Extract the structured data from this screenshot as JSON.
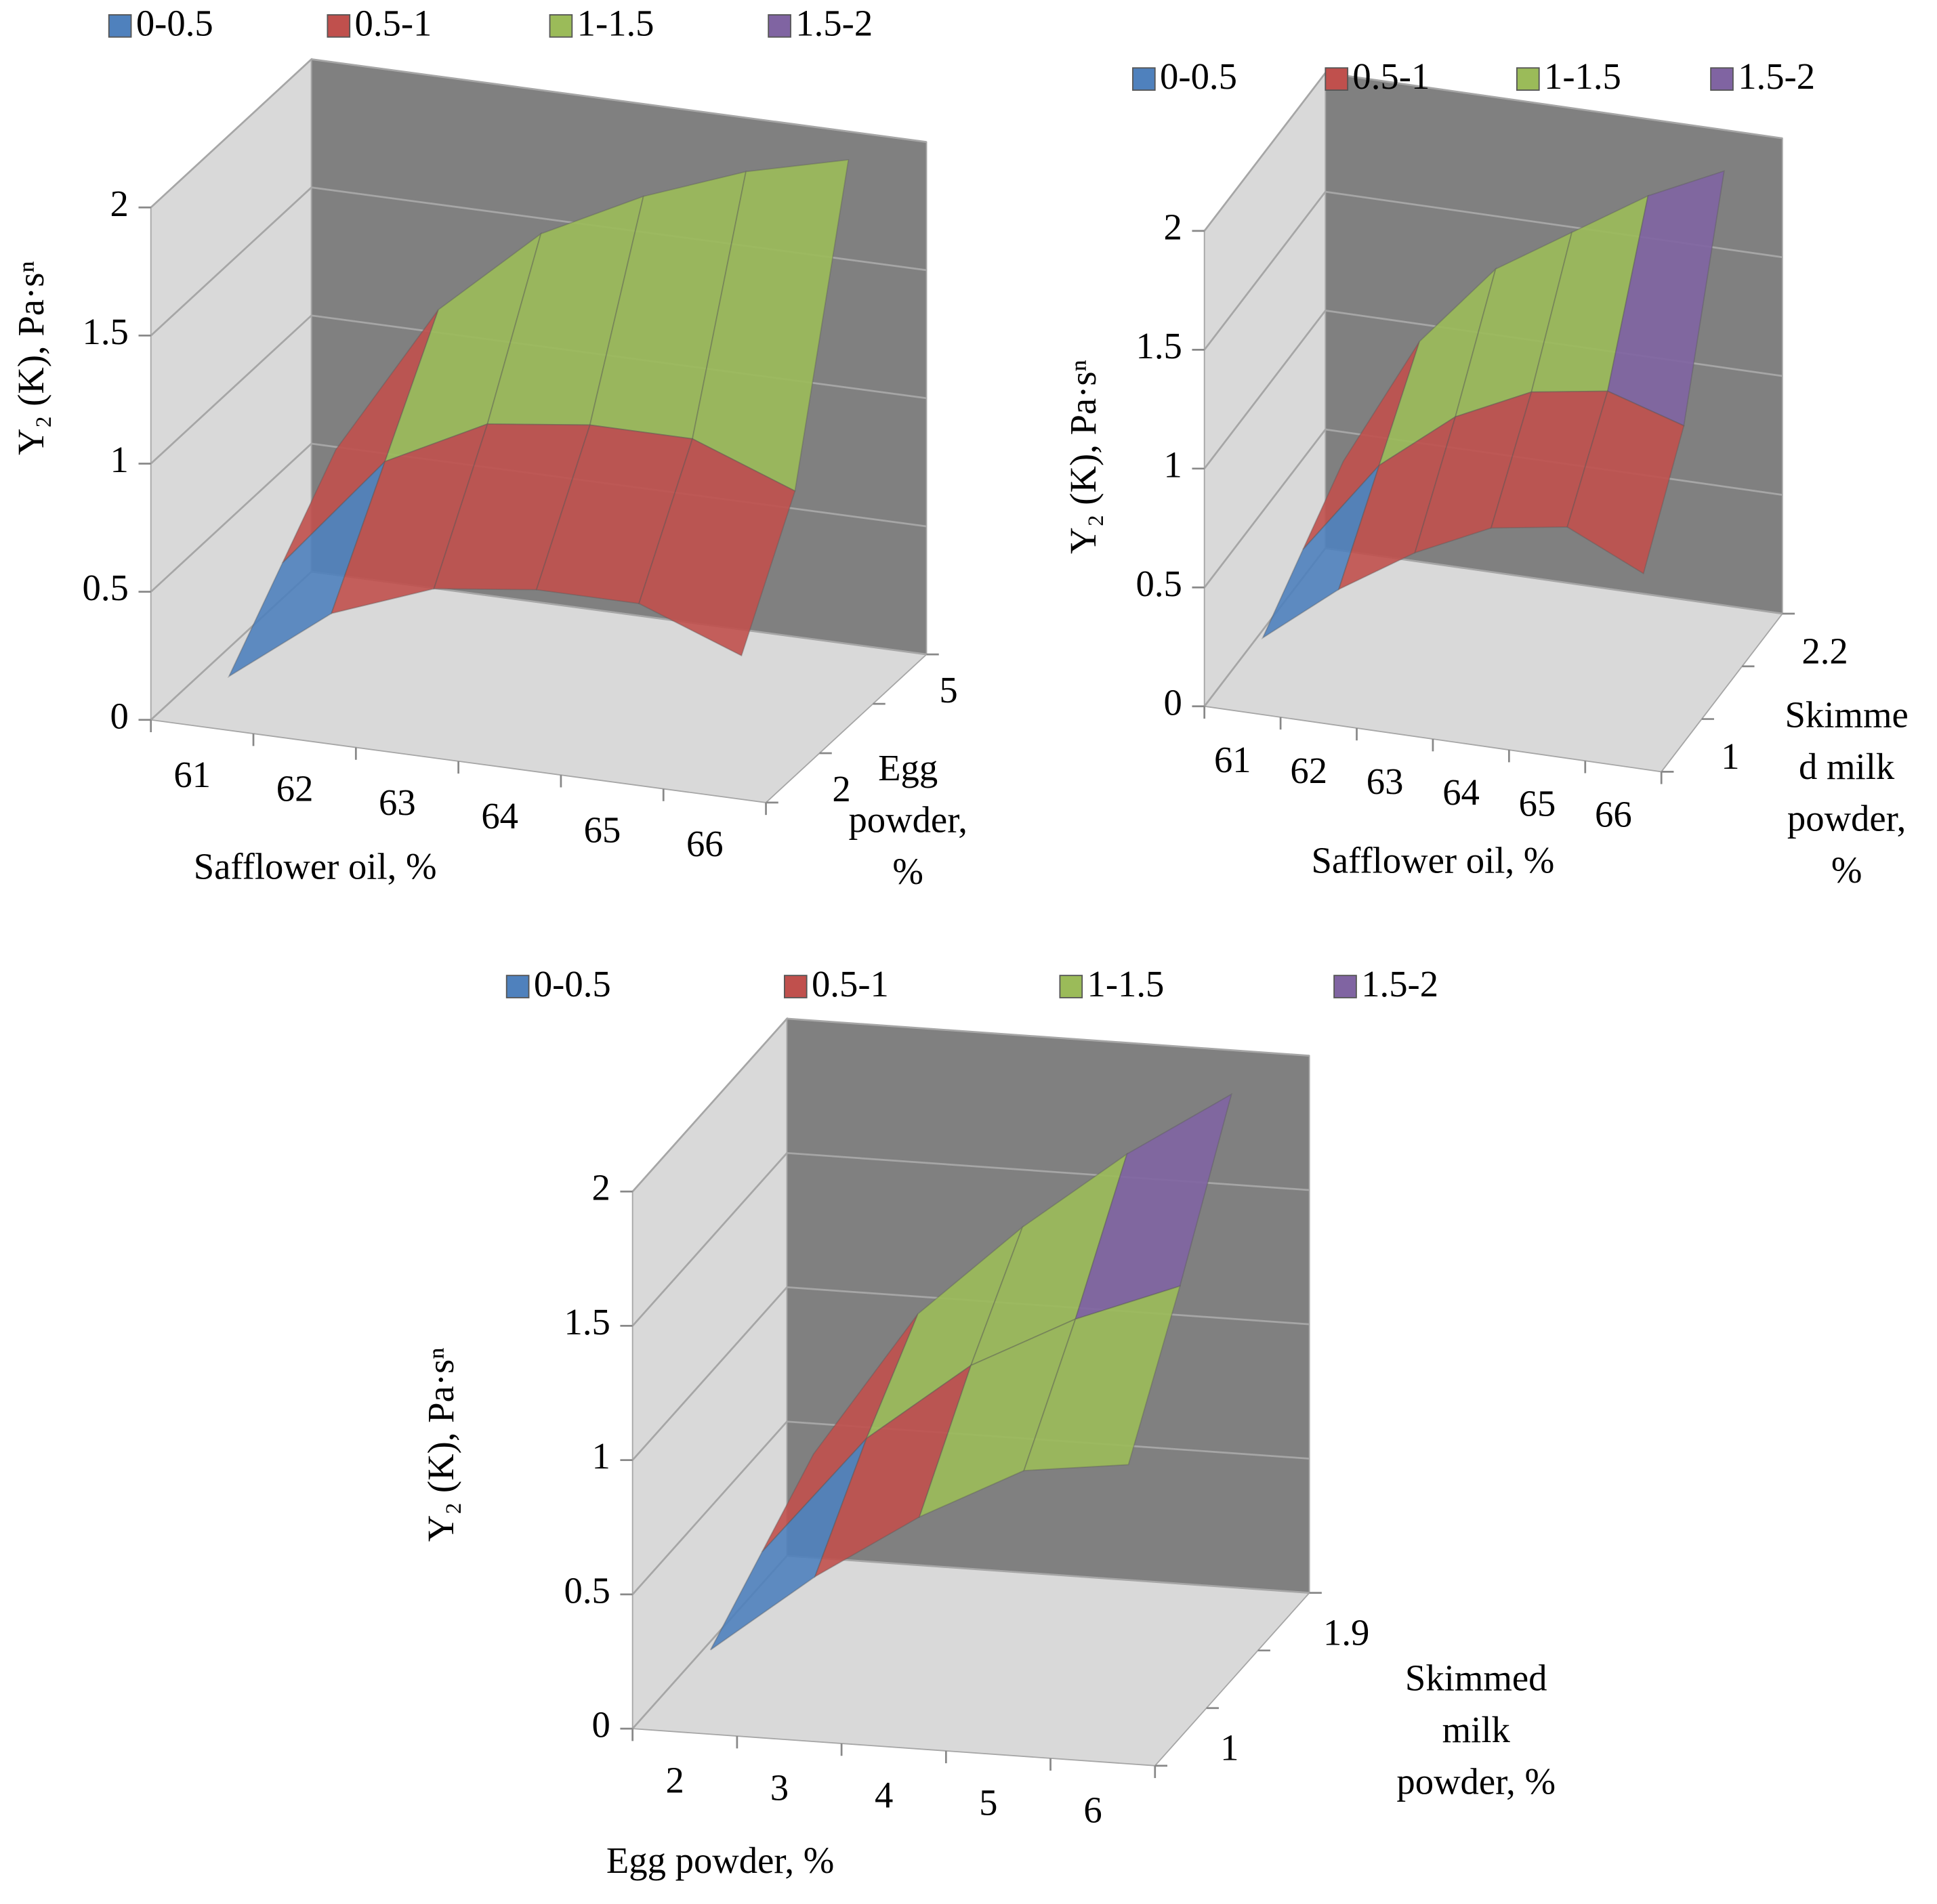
{
  "chart_data": [
    {
      "type": "surface",
      "y_label": "Y₂ (K), Pa·sⁿ",
      "x_label": "Safflower oil, %",
      "depth_label": [
        "Egg",
        "powder,",
        "%"
      ],
      "categories": [
        "61",
        "62",
        "63",
        "64",
        "65",
        "66"
      ],
      "depth_categories": [
        "2",
        null,
        "5"
      ],
      "values": [
        [
          0.1,
          0.4,
          0.55,
          0.6,
          0.6,
          0.45
        ],
        [
          0.35,
          0.8,
          1.0,
          1.05,
          1.05,
          0.9
        ],
        [
          0.6,
          1.2,
          1.55,
          1.75,
          1.9,
          2.0
        ]
      ],
      "ylim": [
        0,
        2
      ],
      "yticks": [
        0,
        0.5,
        1,
        1.5,
        2
      ],
      "grid": true,
      "legend": [
        {
          "name": "0-0.5",
          "color": "#4f81bd"
        },
        {
          "name": "0.5-1",
          "color": "#c0504d"
        },
        {
          "name": "1-1.5",
          "color": "#9bbb59"
        },
        {
          "name": "1.5-2",
          "color": "#8064a2"
        }
      ]
    },
    {
      "type": "surface",
      "y_label": "Y₂ (K), Pa·sⁿ",
      "x_label": "Safflower oil, %",
      "depth_label": [
        "Skimme",
        "d milk",
        "powder,",
        "%"
      ],
      "categories": [
        "61",
        "62",
        "63",
        "64",
        "65",
        "66"
      ],
      "depth_categories": [
        "1",
        null,
        "2.2"
      ],
      "values": [
        [
          0.2,
          0.45,
          0.65,
          0.8,
          0.85,
          0.7
        ],
        [
          0.35,
          0.75,
          1.0,
          1.15,
          1.2,
          1.1
        ],
        [
          0.5,
          1.05,
          1.4,
          1.6,
          1.8,
          1.95
        ]
      ],
      "ylim": [
        0,
        2
      ],
      "yticks": [
        0,
        0.5,
        1,
        1.5,
        2
      ],
      "grid": true,
      "legend": [
        {
          "name": "0-0.5",
          "color": "#4f81bd"
        },
        {
          "name": "0.5-1",
          "color": "#c0504d"
        },
        {
          "name": "1-1.5",
          "color": "#9bbb59"
        },
        {
          "name": "1.5-2",
          "color": "#8064a2"
        }
      ]
    },
    {
      "type": "surface",
      "y_label": "Y₂ (K), Pa·sⁿ",
      "x_label": "Egg powder, %",
      "depth_label": [
        "Skimmed",
        "milk",
        "powder, %"
      ],
      "categories": [
        "2",
        "3",
        "4",
        "5",
        "6"
      ],
      "depth_categories": [
        "1",
        null,
        "1.9"
      ],
      "values": [
        [
          0.2,
          0.5,
          0.75,
          0.95,
          1.0
        ],
        [
          0.35,
          0.8,
          1.1,
          1.3,
          1.45
        ],
        [
          0.5,
          1.05,
          1.4,
          1.7,
          1.95
        ]
      ],
      "ylim": [
        0,
        2
      ],
      "yticks": [
        0,
        0.5,
        1,
        1.5,
        2
      ],
      "grid": true,
      "legend": [
        {
          "name": "0-0.5",
          "color": "#4f81bd"
        },
        {
          "name": "0.5-1",
          "color": "#c0504d"
        },
        {
          "name": "1-1.5",
          "color": "#9bbb59"
        },
        {
          "name": "1.5-2",
          "color": "#8064a2"
        }
      ]
    }
  ]
}
